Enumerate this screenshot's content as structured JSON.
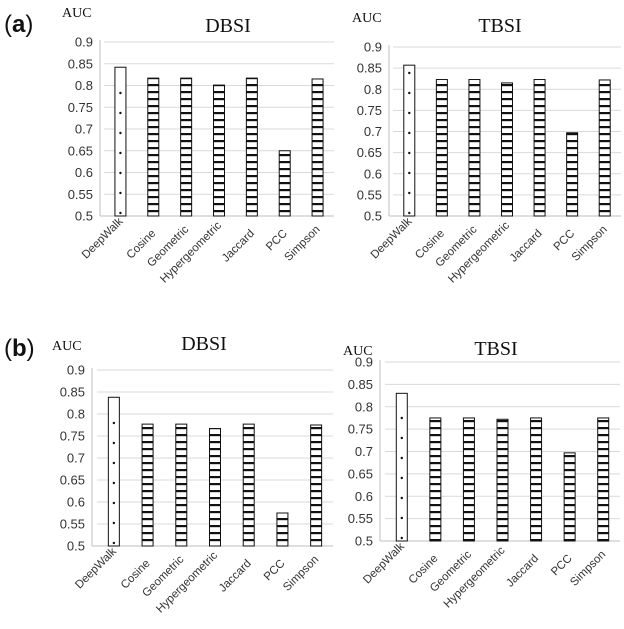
{
  "panel_labels": {
    "a_open": "(",
    "a_letter": "a",
    "a_close": ")",
    "b_open": "(",
    "b_letter": "b",
    "b_close": ")"
  },
  "colors": {
    "bar_edge": "#111111",
    "bar_fill": "#ffffff",
    "grid": "#d9d9d9"
  },
  "chart_data": [
    {
      "type": "bar",
      "panel": "a",
      "title": "DBSI",
      "ylabel": "AUC",
      "ylim": [
        0.5,
        0.9
      ],
      "yticks": [
        "0.5",
        "0.55",
        "0.6",
        "0.65",
        "0.7",
        "0.75",
        "0.8",
        "0.85",
        "0.9"
      ],
      "categories": [
        "DeepWalk",
        "Cosine",
        "Geometric",
        "Hypergeometric",
        "Jaccard",
        "PCC",
        "Simpson"
      ],
      "values": [
        0.842,
        0.817,
        0.817,
        0.801,
        0.817,
        0.65,
        0.815
      ],
      "grid": true
    },
    {
      "type": "bar",
      "panel": "a",
      "title": "TBSI",
      "ylabel": "AUC",
      "ylim": [
        0.5,
        0.9
      ],
      "yticks": [
        "0.5",
        "0.55",
        "0.6",
        "0.65",
        "0.7",
        "0.75",
        "0.8",
        "0.85",
        "0.9"
      ],
      "categories": [
        "DeepWalk",
        "Cosine",
        "Geometric",
        "Hypergeometric",
        "Jaccard",
        "PCC",
        "Simpson"
      ],
      "values": [
        0.857,
        0.823,
        0.823,
        0.815,
        0.823,
        0.697,
        0.822
      ],
      "grid": true
    },
    {
      "type": "bar",
      "panel": "b",
      "title": "DBSI",
      "ylabel": "AUC",
      "ylim": [
        0.5,
        0.9
      ],
      "yticks": [
        "0.5",
        "0.55",
        "0.6",
        "0.65",
        "0.7",
        "0.75",
        "0.8",
        "0.85",
        "0.9"
      ],
      "categories": [
        "DeepWalk",
        "Cosine",
        "Geometric",
        "Hypergeometric",
        "Jaccard",
        "PCC",
        "Simpson"
      ],
      "values": [
        0.838,
        0.777,
        0.777,
        0.767,
        0.777,
        0.575,
        0.775
      ],
      "grid": true
    },
    {
      "type": "bar",
      "panel": "b",
      "title": "TBSI",
      "ylabel": "AUC",
      "ylim": [
        0.5,
        0.9
      ],
      "yticks": [
        "0.5",
        "0.55",
        "0.6",
        "0.65",
        "0.7",
        "0.75",
        "0.8",
        "0.85",
        "0.9"
      ],
      "categories": [
        "DeepWalk",
        "Cosine",
        "Geometric",
        "Hypergeometric",
        "Jaccard",
        "PCC",
        "Simpson"
      ],
      "values": [
        0.83,
        0.775,
        0.775,
        0.772,
        0.775,
        0.697,
        0.775
      ],
      "grid": true
    }
  ]
}
